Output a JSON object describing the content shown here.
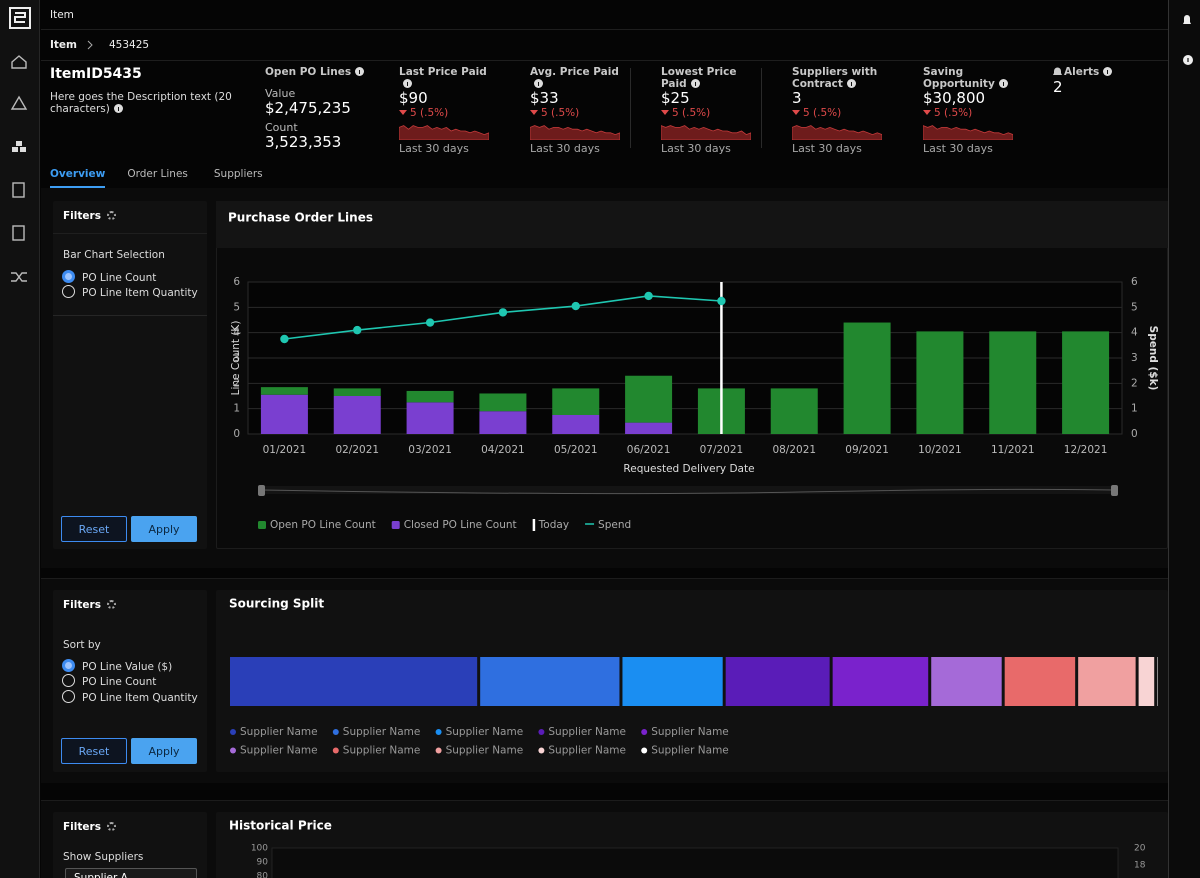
{
  "header": {
    "title": "Item",
    "breadcrumb": [
      "Item",
      "453425"
    ]
  },
  "item": {
    "id": "ItemID5435",
    "description": "Here goes the Description text (20 characters)"
  },
  "kpis": {
    "open_po": {
      "label": "Open PO Lines",
      "value_label": "Value",
      "value": "$2,475,235",
      "count_label": "Count",
      "count": "3,523,353"
    },
    "trend_ylim": [
      0,
      10
    ],
    "cards": [
      {
        "label": "Last Price Paid",
        "value": "$90",
        "change": "5 (.5%)",
        "period": "Last 30 days",
        "trend": [
          7,
          8,
          6,
          8,
          7,
          7,
          8,
          6,
          7,
          6,
          7,
          5,
          6,
          5,
          5,
          4,
          5,
          4,
          3,
          4
        ]
      },
      {
        "label": "Avg. Price Paid",
        "value": "$33",
        "change": "5 (.5%)",
        "period": "Last 30 days",
        "trend": [
          7,
          8,
          7,
          8,
          6,
          7,
          7,
          6,
          7,
          6,
          6,
          5,
          6,
          5,
          4,
          5,
          4,
          4,
          3,
          4
        ]
      },
      {
        "label": "Lowest Price Paid",
        "value": "$25",
        "change": "5 (.5%)",
        "period": "Last 30 days",
        "trend": [
          8,
          7,
          8,
          7,
          7,
          8,
          6,
          7,
          6,
          7,
          6,
          5,
          6,
          5,
          5,
          4,
          4,
          5,
          3,
          4
        ]
      },
      {
        "label": "Suppliers with Contract",
        "value": "3",
        "change": "5 (.5%)",
        "period": "Last 30 days",
        "trend": [
          7,
          8,
          7,
          7,
          8,
          6,
          7,
          6,
          7,
          6,
          5,
          6,
          5,
          5,
          4,
          5,
          4,
          3,
          4,
          3
        ]
      },
      {
        "label": "Saving Opportunity",
        "value": "$30,800",
        "change": "5 (.5%)",
        "period": "Last 30 days",
        "trend": [
          8,
          7,
          8,
          6,
          7,
          7,
          6,
          7,
          6,
          6,
          5,
          6,
          5,
          4,
          5,
          4,
          4,
          3,
          4,
          3
        ]
      }
    ],
    "alerts": {
      "label": "Alerts",
      "value": "2"
    }
  },
  "tabs": [
    "Overview",
    "Order Lines",
    "Suppliers"
  ],
  "active_tab": 0,
  "filters": [
    {
      "title": "Filters",
      "group_label": "Bar Chart Selection",
      "options": [
        "PO Line Count",
        "PO Line Item Quantity"
      ],
      "selected": 0,
      "buttons": [
        "Reset",
        "Apply"
      ]
    },
    {
      "title": "Filters",
      "group_label": "Sort by",
      "options": [
        "PO Line Value ($)",
        "PO Line Count",
        "PO Line Item Quantity"
      ],
      "selected": 0,
      "buttons": [
        "Reset",
        "Apply"
      ]
    },
    {
      "title": "Filters",
      "group_label": "Show Suppliers",
      "dropdown": "Supplier A"
    }
  ],
  "chart_data": [
    {
      "type": "bar",
      "title": "Purchase Order Lines",
      "x_label": "Requested Delivery Date",
      "y_label": "Line Count (K)",
      "y2_label": "Spend ($k)",
      "categories": [
        "01/2021",
        "02/2021",
        "03/2021",
        "04/2021",
        "05/2021",
        "06/2021",
        "07/2021",
        "08/2021",
        "09/2021",
        "10/2021",
        "11/2021",
        "12/2021"
      ],
      "stacked": true,
      "series": [
        {
          "name": "Open PO Line Count",
          "color": "#22882f",
          "values": [
            0.3,
            0.3,
            0.45,
            0.7,
            1.05,
            1.85,
            1.8,
            1.8,
            4.4,
            4.05,
            4.05,
            4.05
          ]
        },
        {
          "name": "Closed PO Line Count",
          "color": "#7a3fd0",
          "values": [
            1.55,
            1.5,
            1.25,
            0.9,
            0.75,
            0.45,
            0,
            0,
            0,
            0,
            0,
            0
          ]
        },
        {
          "name": "Spend",
          "type": "line",
          "axis": "y2",
          "color": "#1fc7b1",
          "values": [
            3.75,
            4.1,
            4.4,
            4.8,
            5.05,
            5.45,
            5.25,
            null,
            null,
            null,
            null,
            null
          ]
        }
      ],
      "today": {
        "name": "Today",
        "x": "07/2021",
        "color": "#ffffff"
      },
      "ylim": [
        0,
        6
      ],
      "yticks": [
        0,
        1,
        2,
        3,
        4,
        5,
        6
      ],
      "y2lim": [
        0,
        6
      ],
      "y2ticks": [
        0,
        1,
        2,
        3,
        4,
        5,
        6
      ],
      "grid": true
    },
    {
      "type": "stacked-bar",
      "title": "Sourcing Split",
      "categories": [
        "Supplier Name",
        "Supplier Name",
        "Supplier Name",
        "Supplier Name",
        "Supplier Name",
        "Supplier Name",
        "Supplier Name",
        "Supplier Name",
        "Supplier Name",
        "Supplier Name"
      ],
      "values": [
        26.9,
        15.3,
        11.1,
        11.5,
        10.6,
        7.9,
        7.9,
        6.5,
        2.0,
        0.3
      ],
      "colors": [
        "#2a3fb8",
        "#2f6fe0",
        "#1a8ef2",
        "#5a1cb8",
        "#7a22cc",
        "#a56ad8",
        "#e86a6a",
        "#f0a0a0",
        "#f8d4d4",
        "#ffffff"
      ]
    },
    {
      "type": "line",
      "title": "Historical Price",
      "ylim": [
        80,
        100
      ],
      "yticks": [
        80,
        90,
        100
      ],
      "y2lim": [
        16.7,
        20
      ],
      "y2ticks": [
        18,
        20
      ]
    }
  ]
}
